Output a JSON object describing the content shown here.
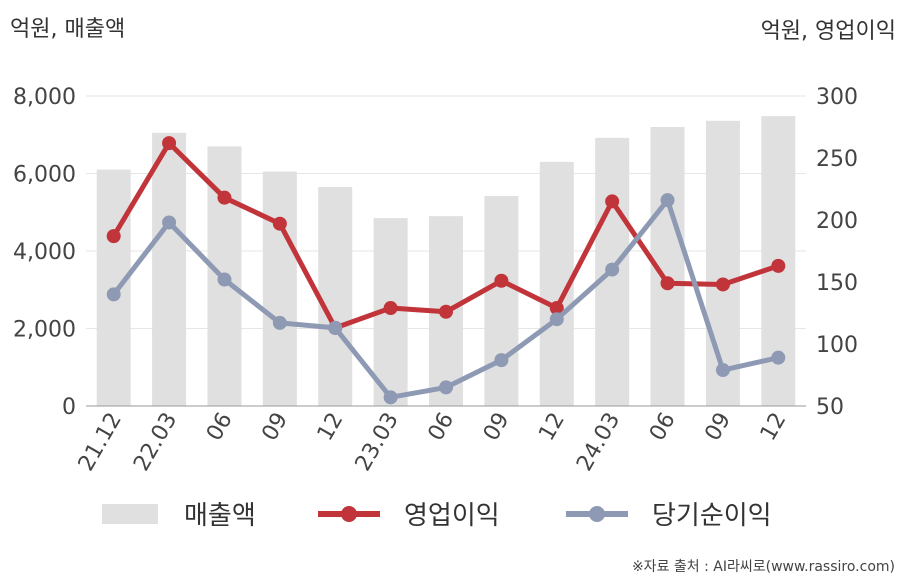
{
  "chart_data": {
    "type": "bar+line",
    "left_axis_unit": "억원, 매출액",
    "right_axis_unit": "억원, 영업이익",
    "categories": [
      "21.12",
      "22.03",
      "06",
      "09",
      "12",
      "23.03",
      "06",
      "09",
      "12",
      "24.03",
      "06",
      "09",
      "12"
    ],
    "left_ylim": [
      0,
      8000
    ],
    "left_ticks": [
      "0",
      "2,000",
      "4,000",
      "6,000",
      "8,000"
    ],
    "right_ylim": [
      50,
      300
    ],
    "right_ticks": [
      "50",
      "100",
      "150",
      "200",
      "250",
      "300"
    ],
    "grid": true,
    "legend_position": "bottom",
    "series": [
      {
        "name": "매출액",
        "kind": "bar",
        "axis": "left",
        "color": "#e0e0e0",
        "values": [
          6100,
          7050,
          6700,
          6050,
          5650,
          4850,
          4900,
          5420,
          6300,
          6920,
          7200,
          7360,
          7480
        ]
      },
      {
        "name": "영업이익",
        "kind": "line",
        "axis": "right",
        "color": "#c1343a",
        "values": [
          187,
          262,
          218,
          197,
          113,
          129,
          126,
          151,
          129,
          215,
          149,
          148,
          163
        ]
      },
      {
        "name": "당기순이익",
        "kind": "line",
        "axis": "right",
        "color": "#8e9ab3",
        "values": [
          140,
          198,
          152,
          117,
          113,
          57,
          65,
          87,
          120,
          160,
          216,
          79,
          89
        ]
      }
    ]
  },
  "source": "※자료 출처 : AI라씨로(www.rassiro.com)"
}
